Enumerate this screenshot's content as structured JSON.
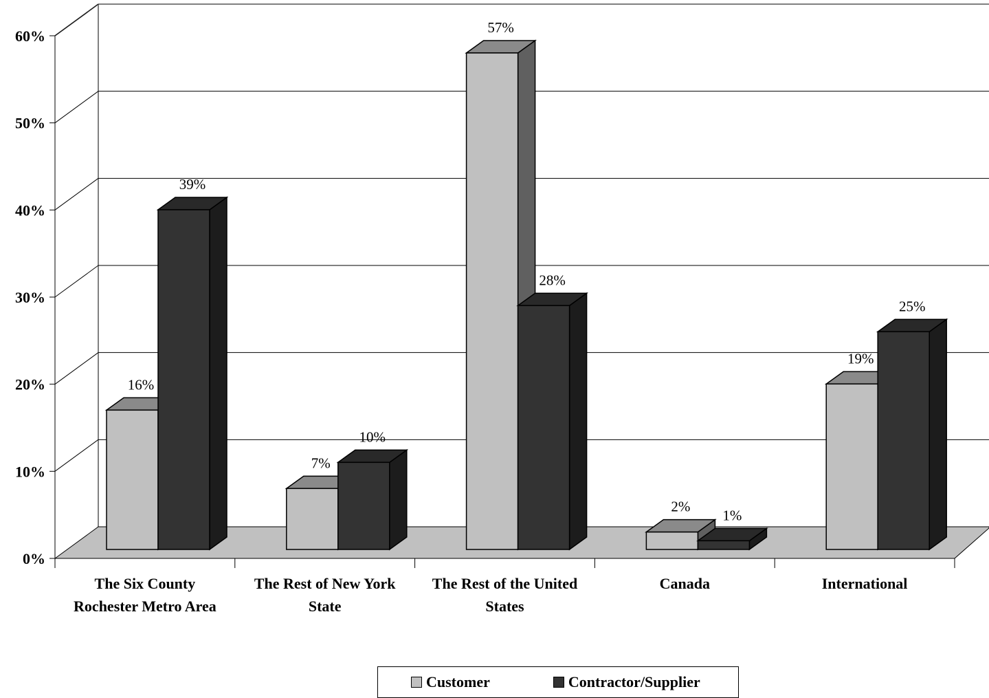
{
  "chart_data": {
    "type": "bar",
    "style": "3d-clustered-column",
    "categories": [
      [
        "The Six County",
        "Rochester Metro Area"
      ],
      [
        "The Rest of New York",
        "State"
      ],
      [
        "The Rest of the United",
        "States"
      ],
      [
        "Canada"
      ],
      [
        "International"
      ]
    ],
    "series": [
      {
        "name": "Customer",
        "values": [
          16,
          7,
          57,
          2,
          19
        ],
        "labels": [
          "16%",
          "7%",
          "57%",
          "2%",
          "19%"
        ],
        "color": "#c0c0c0"
      },
      {
        "name": "Contractor/Supplier",
        "values": [
          39,
          10,
          28,
          1,
          25
        ],
        "labels": [
          "39%",
          "10%",
          "28%",
          "1%",
          "25%"
        ],
        "color": "#333333"
      }
    ],
    "yticks": [
      "0%",
      "10%",
      "20%",
      "30%",
      "40%",
      "50%",
      "60%"
    ],
    "ylim": [
      0,
      60
    ],
    "grid": true,
    "legend": "bottom",
    "colors": {
      "floor": "#c0c0c0",
      "wall_line": "#808080",
      "grid": "#000000"
    }
  }
}
